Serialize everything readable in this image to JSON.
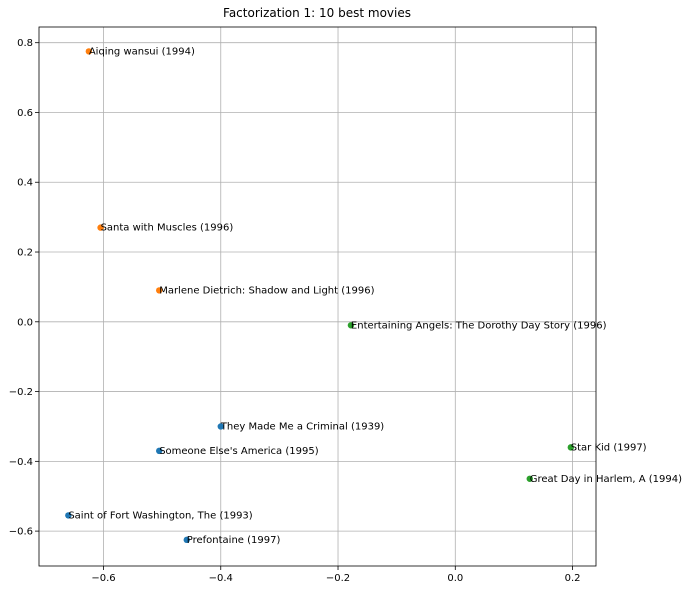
{
  "chart_data": {
    "type": "scatter",
    "title": "Factorization 1: 10 best movies",
    "xlabel": "",
    "ylabel": "",
    "xlim": [
      -0.71,
      0.24
    ],
    "ylim": [
      -0.7,
      0.845
    ],
    "xticks": [
      -0.6,
      -0.4,
      -0.2,
      0.0,
      0.2
    ],
    "xtick_labels": [
      "−0.6",
      "−0.4",
      "−0.2",
      "0.0",
      "0.2"
    ],
    "yticks": [
      -0.6,
      -0.4,
      -0.2,
      0.0,
      0.2,
      0.4,
      0.6,
      0.8
    ],
    "ytick_labels": [
      "−0.6",
      "−0.4",
      "−0.2",
      "0.0",
      "0.2",
      "0.4",
      "0.6",
      "0.8"
    ],
    "grid": true,
    "series": [
      {
        "color": "#1f77b4",
        "points": [
          {
            "x": -0.4,
            "y": -0.3,
            "label": "They Made Me a Criminal (1939)"
          },
          {
            "x": -0.505,
            "y": -0.37,
            "label": "Someone Else's America (1995)"
          },
          {
            "x": -0.66,
            "y": -0.555,
            "label": "Saint of Fort Washington, The (1993)"
          },
          {
            "x": -0.458,
            "y": -0.625,
            "label": "Prefontaine (1997)"
          }
        ]
      },
      {
        "color": "#ff7f0e",
        "points": [
          {
            "x": -0.625,
            "y": 0.775,
            "label": "Aiqing wansui (1994)"
          },
          {
            "x": -0.605,
            "y": 0.27,
            "label": "Santa with Muscles (1996)"
          },
          {
            "x": -0.505,
            "y": 0.09,
            "label": "Marlene Dietrich: Shadow and Light (1996)"
          }
        ]
      },
      {
        "color": "#2ca02c",
        "points": [
          {
            "x": -0.178,
            "y": -0.01,
            "label": "Entertaining Angels: The Dorothy Day Story (1996)"
          },
          {
            "x": 0.197,
            "y": -0.36,
            "label": "Star Kid (1997)"
          },
          {
            "x": 0.127,
            "y": -0.45,
            "label": "Great Day in Harlem, A (1994)"
          }
        ]
      }
    ]
  }
}
